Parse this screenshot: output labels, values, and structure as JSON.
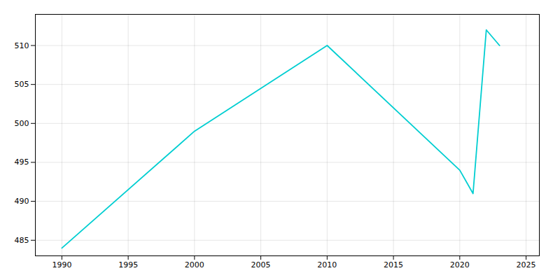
{
  "chart_data": {
    "type": "line",
    "x": [
      1990,
      2000,
      2010,
      2020,
      2021,
      2022,
      2023
    ],
    "values": [
      484,
      499,
      510,
      494,
      491,
      512,
      510
    ],
    "color": "#00CED1",
    "xlim": [
      1988,
      2026
    ],
    "ylim": [
      483,
      514
    ],
    "xticks": [
      1990,
      1995,
      2000,
      2005,
      2010,
      2015,
      2020,
      2025
    ],
    "yticks": [
      485,
      490,
      495,
      500,
      505,
      510
    ],
    "grid": true
  }
}
